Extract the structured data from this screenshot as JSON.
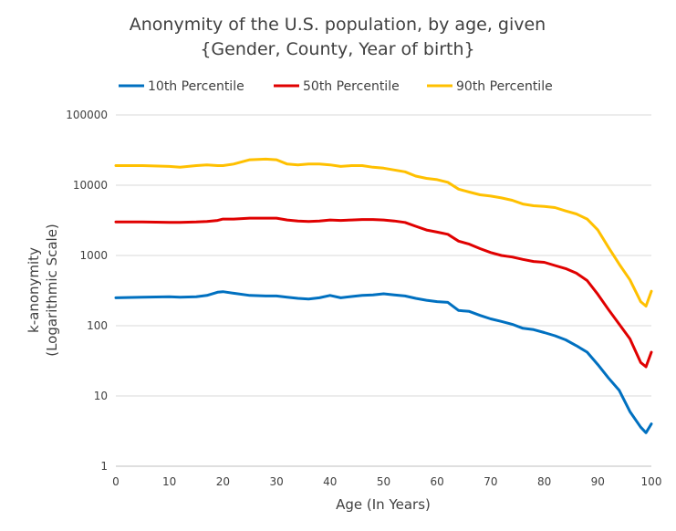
{
  "chart_data": {
    "type": "line",
    "title_line1": "Anonymity of the U.S. population, by age, given",
    "title_line2": "{Gender, County, Year of birth}",
    "xlabel": "Age (In Years)",
    "ylabel_line1": "k-anonymity",
    "ylabel_line2": "(Logarithmic Scale)",
    "xlim": [
      0,
      100
    ],
    "ylim": [
      1,
      100000
    ],
    "y_scale": "log",
    "grid": "horizontal",
    "legend_position": "top",
    "x_ticks": [
      "0",
      "10",
      "20",
      "30",
      "40",
      "50",
      "60",
      "70",
      "80",
      "90",
      "100"
    ],
    "y_ticks": [
      "1",
      "10",
      "100",
      "1000",
      "10000",
      "100000"
    ],
    "x": [
      0,
      5,
      10,
      12,
      15,
      17,
      19,
      20,
      22,
      25,
      28,
      30,
      32,
      34,
      36,
      38,
      40,
      42,
      44,
      46,
      48,
      50,
      52,
      54,
      56,
      58,
      60,
      62,
      64,
      66,
      68,
      70,
      72,
      74,
      76,
      78,
      80,
      82,
      84,
      86,
      88,
      90,
      92,
      94,
      96,
      98,
      99,
      100
    ],
    "series": [
      {
        "name": "10th Percentile",
        "color": "#0070C0",
        "values": [
          250,
          255,
          258,
          255,
          258,
          270,
          300,
          305,
          290,
          270,
          265,
          265,
          255,
          245,
          240,
          250,
          270,
          250,
          260,
          270,
          275,
          285,
          275,
          265,
          245,
          230,
          220,
          215,
          165,
          160,
          140,
          125,
          115,
          105,
          92,
          88,
          80,
          72,
          63,
          52,
          42,
          28,
          18,
          12,
          6,
          3.6,
          3.0,
          4.0
        ]
      },
      {
        "name": "50th Percentile",
        "color": "#E00000",
        "values": [
          3000,
          3000,
          2950,
          2950,
          3000,
          3050,
          3150,
          3300,
          3300,
          3400,
          3400,
          3400,
          3200,
          3100,
          3050,
          3100,
          3200,
          3150,
          3200,
          3250,
          3250,
          3200,
          3100,
          2950,
          2600,
          2300,
          2150,
          2000,
          1600,
          1450,
          1250,
          1100,
          1000,
          950,
          880,
          820,
          800,
          720,
          650,
          560,
          440,
          280,
          170,
          105,
          65,
          30,
          26,
          42
        ]
      },
      {
        "name": "90th Percentile",
        "color": "#FFC000",
        "values": [
          19000,
          19000,
          18500,
          18000,
          19000,
          19500,
          19000,
          19000,
          20000,
          23000,
          23500,
          23000,
          20000,
          19500,
          20000,
          20000,
          19500,
          18500,
          19000,
          19000,
          18000,
          17500,
          16500,
          15500,
          13500,
          12500,
          12000,
          11000,
          8800,
          8000,
          7300,
          7000,
          6600,
          6100,
          5400,
          5100,
          5000,
          4800,
          4300,
          3900,
          3300,
          2300,
          1300,
          750,
          450,
          220,
          190,
          310
        ]
      }
    ]
  }
}
